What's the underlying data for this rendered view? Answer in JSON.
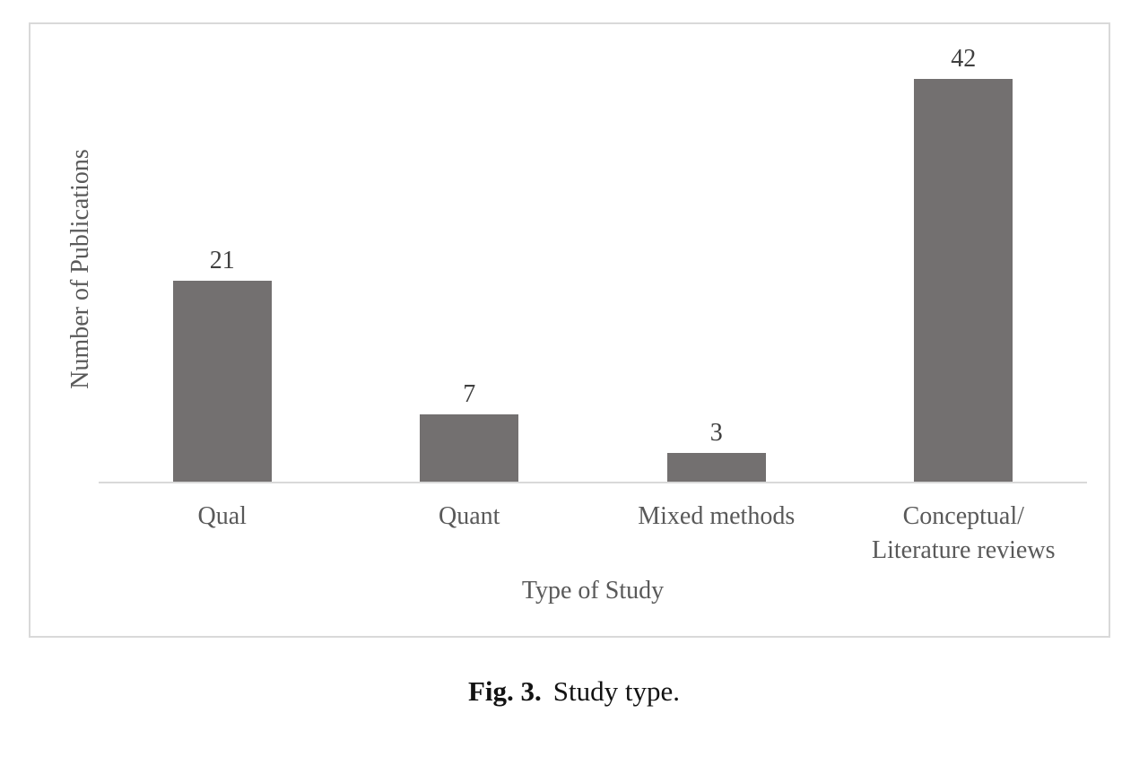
{
  "figure": {
    "caption_label": "Fig. 3.",
    "caption_text": "Study type."
  },
  "chart_data": {
    "type": "bar",
    "title": "",
    "categories": [
      "Qual",
      "Quant",
      "Mixed methods",
      "Conceptual/\nLiterature reviews"
    ],
    "values": [
      21,
      7,
      3,
      42
    ],
    "xlabel": "Type of Study",
    "ylabel": "Number of Publications",
    "ylim": [
      0,
      45
    ],
    "grid": false,
    "legend": false,
    "bar_color": "#737070",
    "axis_color": "#d9d9d9",
    "label_color": "#595959",
    "value_label_color": "#3f3f3f"
  }
}
